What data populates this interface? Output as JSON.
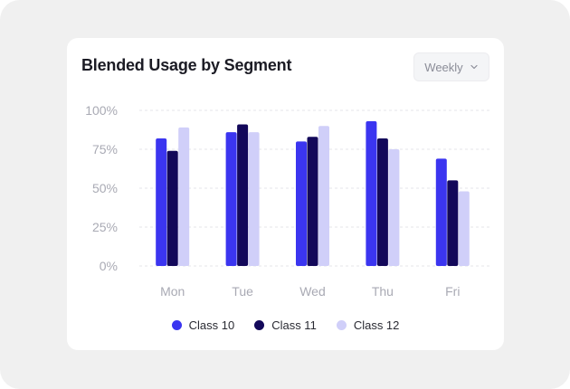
{
  "card": {
    "title": "Blended Usage by Segment"
  },
  "period_dropdown": {
    "selected": "Weekly"
  },
  "colors": {
    "class10": "#3b35f0",
    "class11": "#13085a",
    "class12": "#d0cff9",
    "grid": "#e4e4ea",
    "axis_text": "#a9aab4"
  },
  "chart_data": {
    "type": "bar",
    "title": "Blended Usage by Segment",
    "xlabel": "",
    "ylabel": "",
    "categories": [
      "Mon",
      "Tue",
      "Wed",
      "Thu",
      "Fri"
    ],
    "series": [
      {
        "name": "Class 10",
        "values": [
          82,
          86,
          80,
          93,
          69
        ]
      },
      {
        "name": "Class 11",
        "values": [
          74,
          91,
          83,
          82,
          55
        ]
      },
      {
        "name": "Class 12",
        "values": [
          89,
          86,
          90,
          75,
          48
        ]
      }
    ],
    "ylim": [
      0,
      100
    ],
    "yticks": [
      "0%",
      "25%",
      "50%",
      "75%",
      "100%"
    ],
    "grid": true,
    "legend": "bottom"
  }
}
